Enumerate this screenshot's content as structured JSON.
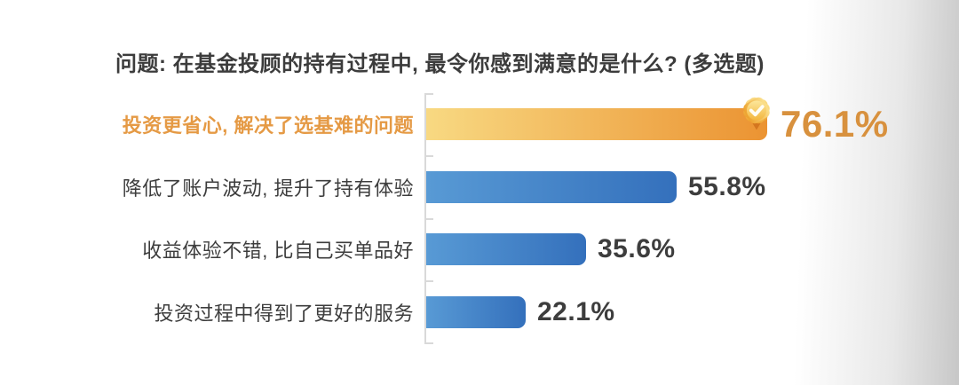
{
  "title": "问题: 在基金投顾的持有过程中, 最令你感到满意的是什么? (多选题)",
  "chart_data": {
    "type": "bar",
    "orientation": "horizontal",
    "title": "问题: 在基金投顾的持有过程中, 最令你感到满意的是什么? (多选题)",
    "categories": [
      "投资更省心, 解决了选基难的问题",
      "降低了账户波动, 提升了持有体验",
      "收益体验不错, 比自己买单品好",
      "投资过程中得到了更好的服务"
    ],
    "values": [
      76.1,
      55.8,
      35.6,
      22.1
    ],
    "value_labels": [
      "76.1%",
      "55.8%",
      "35.6%",
      "22.1%"
    ],
    "xlim": [
      0,
      100
    ],
    "grid": false,
    "legend": false,
    "highlight_index": 0,
    "badge_icon": "medal-check-badge-icon",
    "colors": {
      "highlight_bar_gradient_start": "#F8D982",
      "highlight_bar_gradient_end": "#EB9332",
      "bar_gradient_start": "#589AD5",
      "bar_gradient_end": "#3470BC",
      "highlight_label_text": "#E59A45",
      "highlight_value_text": "#D8913E",
      "label_text": "#3D3D3D",
      "value_text": "#3D3D3D",
      "title_text": "#3C3C3C",
      "axis_line": "#D9D9D9"
    }
  }
}
